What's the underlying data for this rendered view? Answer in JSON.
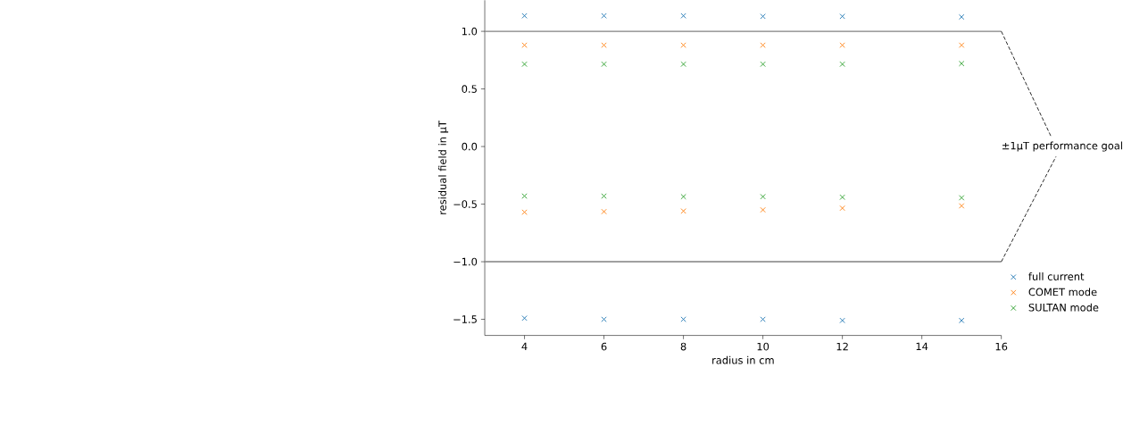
{
  "chart_data": {
    "type": "scatter",
    "xlabel": "radius in cm",
    "ylabel": "residual field  in μT",
    "xlim": [
      3,
      16
    ],
    "ylim": [
      -1.64,
      1.27
    ],
    "xticks": [
      4,
      6,
      8,
      10,
      12,
      14,
      16
    ],
    "yticks": [
      {
        "value": -1.5,
        "label": "−1.5"
      },
      {
        "value": -1.0,
        "label": "−1.0"
      },
      {
        "value": -0.5,
        "label": "−0.5"
      },
      {
        "value": 0.0,
        "label": "0.0"
      },
      {
        "value": 0.5,
        "label": "0.5"
      },
      {
        "value": 1.0,
        "label": "1.0"
      }
    ],
    "marker": "cross",
    "legend": "bottom right",
    "series": [
      {
        "name": "full current",
        "color": "#1f77b4",
        "x": [
          4,
          6,
          8,
          10,
          12,
          15,
          4,
          6,
          8,
          10,
          12,
          15
        ],
        "values": [
          1.135,
          1.135,
          1.135,
          1.13,
          1.13,
          1.125,
          -1.49,
          -1.5,
          -1.5,
          -1.5,
          -1.51,
          -1.51
        ]
      },
      {
        "name": "COMET mode",
        "color": "#ff7f0e",
        "x": [
          4,
          6,
          8,
          10,
          12,
          15,
          4,
          6,
          8,
          10,
          12,
          15
        ],
        "values": [
          0.88,
          0.88,
          0.88,
          0.88,
          0.88,
          0.88,
          -0.57,
          -0.565,
          -0.56,
          -0.55,
          -0.535,
          -0.515
        ]
      },
      {
        "name": "SULTAN mode",
        "color": "#2ca02c",
        "x": [
          4,
          6,
          8,
          10,
          12,
          15,
          4,
          6,
          8,
          10,
          12,
          15
        ],
        "values": [
          0.715,
          0.715,
          0.715,
          0.715,
          0.715,
          0.72,
          -0.43,
          -0.43,
          -0.435,
          -0.435,
          -0.44,
          -0.445
        ]
      }
    ],
    "ref_lines": [
      {
        "axis": "y",
        "value": 1.0,
        "color": "#808080"
      },
      {
        "axis": "y",
        "value": -1.0,
        "color": "#808080"
      }
    ],
    "annotations": [
      {
        "text": "±1μT performance goal",
        "x": 16,
        "y": 1.0
      }
    ]
  }
}
